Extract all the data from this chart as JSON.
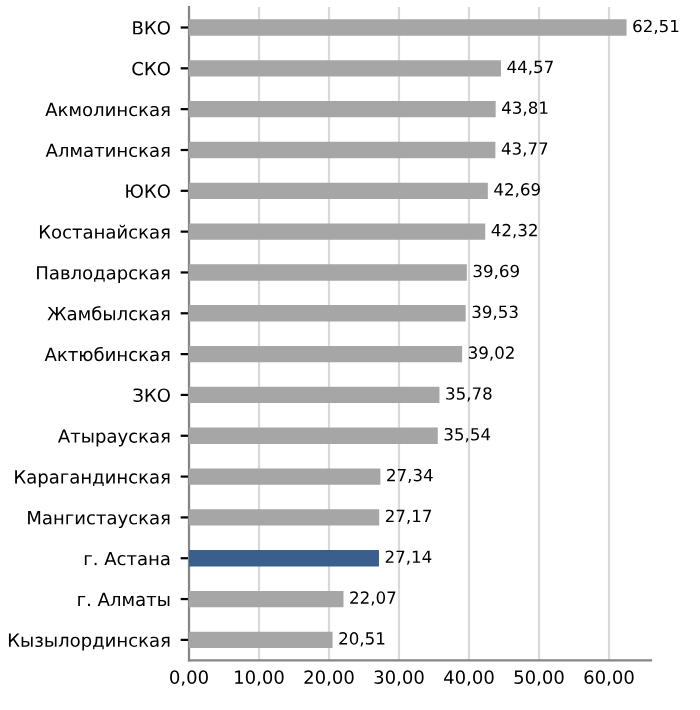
{
  "chart_data": {
    "type": "bar",
    "orientation": "horizontal",
    "categories": [
      "ВКО",
      "СКО",
      "Акмолинская",
      "Алматинская",
      "ЮКО",
      "Костанайская",
      "Павлодарская",
      "Жамбылская",
      "Актюбинская",
      "ЗКО",
      "Атырауская",
      "Карагандинская",
      "Мангистауская",
      "г. Астана",
      "г. Алматы",
      "Кызылординская"
    ],
    "values": [
      62.51,
      44.57,
      43.81,
      43.77,
      42.69,
      42.32,
      39.69,
      39.53,
      39.02,
      35.78,
      35.54,
      27.34,
      27.17,
      27.14,
      22.07,
      20.51
    ],
    "value_labels": [
      "62,51",
      "44,57",
      "43,81",
      "43,77",
      "42,69",
      "42,32",
      "39,69",
      "39,53",
      "39,02",
      "35,78",
      "35,54",
      "27,34",
      "27,17",
      "27,14",
      "22,07",
      "20,51"
    ],
    "colors": [
      "#a6a6a6",
      "#a6a6a6",
      "#a6a6a6",
      "#a6a6a6",
      "#a6a6a6",
      "#a6a6a6",
      "#a6a6a6",
      "#a6a6a6",
      "#a6a6a6",
      "#a6a6a6",
      "#a6a6a6",
      "#a6a6a6",
      "#a6a6a6",
      "#3a5f8c",
      "#a6a6a6",
      "#a6a6a6"
    ],
    "xlim": [
      0,
      66
    ],
    "xticks": [
      {
        "value": 0,
        "label": "0,00"
      },
      {
        "value": 10,
        "label": "10,00"
      },
      {
        "value": 20,
        "label": "20,00"
      },
      {
        "value": 30,
        "label": "30,00"
      },
      {
        "value": 40,
        "label": "40,00"
      },
      {
        "value": 50,
        "label": "50,00"
      },
      {
        "value": 60,
        "label": "60,00"
      }
    ],
    "grid": "x",
    "legend": false
  }
}
